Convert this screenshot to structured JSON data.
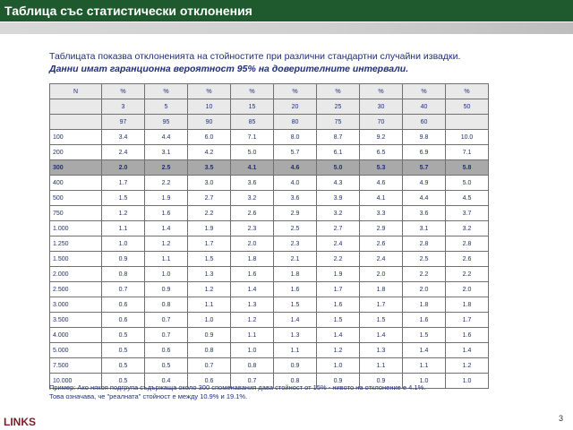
{
  "header": {
    "title": "Таблица със статистически отклонения"
  },
  "intro": {
    "line1": "Таблицата показва отклоненията на стойностите при различни стандартни случайни извадки.",
    "line2": "Данни имат гаранционна вероятност 95% на доверителните интервали."
  },
  "table": {
    "header_rows": [
      [
        "N",
        "%",
        "%",
        "%",
        "%",
        "%",
        "%",
        "%",
        "%",
        "%"
      ],
      [
        "",
        "3",
        "5",
        "10",
        "15",
        "20",
        "25",
        "30",
        "40",
        "50"
      ],
      [
        "",
        "97",
        "95",
        "90",
        "85",
        "80",
        "75",
        "70",
        "60",
        ""
      ]
    ],
    "rows": [
      [
        "100",
        "3.4",
        "4.4",
        "6.0",
        "7.1",
        "8.0",
        "8.7",
        "9.2",
        "9.8",
        "10.0"
      ],
      [
        "200",
        "2.4",
        "3.1",
        "4.2",
        "5.0",
        "5.7",
        "6.1",
        "6.5",
        "6.9",
        "7.1"
      ],
      [
        "300",
        "2.0",
        "2.5",
        "3.5",
        "4.1",
        "4.6",
        "5.0",
        "5.3",
        "5.7",
        "5.8"
      ],
      [
        "400",
        "1.7",
        "2.2",
        "3.0",
        "3.6",
        "4.0",
        "4.3",
        "4.6",
        "4.9",
        "5.0"
      ],
      [
        "500",
        "1.5",
        "1.9",
        "2.7",
        "3.2",
        "3.6",
        "3.9",
        "4.1",
        "4.4",
        "4.5"
      ],
      [
        "750",
        "1.2",
        "1.6",
        "2.2",
        "2.6",
        "2.9",
        "3.2",
        "3.3",
        "3.6",
        "3.7"
      ],
      [
        "1.000",
        "1.1",
        "1.4",
        "1.9",
        "2.3",
        "2.5",
        "2.7",
        "2.9",
        "3.1",
        "3.2"
      ],
      [
        "1.250",
        "1.0",
        "1.2",
        "1.7",
        "2.0",
        "2.3",
        "2.4",
        "2.6",
        "2.8",
        "2.8"
      ],
      [
        "1.500",
        "0.9",
        "1.1",
        "1.5",
        "1.8",
        "2.1",
        "2.2",
        "2.4",
        "2.5",
        "2.6"
      ],
      [
        "2.000",
        "0.8",
        "1.0",
        "1.3",
        "1.6",
        "1.8",
        "1.9",
        "2.0",
        "2.2",
        "2.2"
      ],
      [
        "2.500",
        "0.7",
        "0.9",
        "1.2",
        "1.4",
        "1.6",
        "1.7",
        "1.8",
        "2.0",
        "2.0"
      ],
      [
        "3.000",
        "0.6",
        "0.8",
        "1.1",
        "1.3",
        "1.5",
        "1.6",
        "1.7",
        "1.8",
        "1.8"
      ],
      [
        "3.500",
        "0.6",
        "0.7",
        "1.0",
        "1.2",
        "1.4",
        "1.5",
        "1.5",
        "1.6",
        "1.7"
      ],
      [
        "4.000",
        "0.5",
        "0.7",
        "0.9",
        "1.1",
        "1.3",
        "1.4",
        "1.4",
        "1.5",
        "1.6"
      ],
      [
        "5.000",
        "0.5",
        "0.6",
        "0.8",
        "1.0",
        "1.1",
        "1.2",
        "1.3",
        "1.4",
        "1.4"
      ],
      [
        "7.500",
        "0.5",
        "0.5",
        "0.7",
        "0.8",
        "0.9",
        "1.0",
        "1.1",
        "1.1",
        "1.2"
      ],
      [
        "10.000",
        "0.5",
        "0.4",
        "0.6",
        "0.7",
        "0.8",
        "0.9",
        "0.9",
        "1.0",
        "1.0"
      ]
    ],
    "highlight_row": "300"
  },
  "footnote": {
    "line1": "Пример: Ако някоя подгрупа съдържаща около 300 споменавания дава стойност от 15% - нивото на отклонение е 4.1%.",
    "line2": "Това означава, че \"реалната\" стойност е между 10.9% и 19.1%."
  },
  "logo": {
    "text": "LINKS"
  },
  "page_number": "3",
  "colors": {
    "title_bar": "#1f5a2e",
    "text": "#1f2f7a",
    "highlight_row": "#a9a9a9",
    "header_cells": "#e9e9e9",
    "logo": "#7a1c2a"
  }
}
